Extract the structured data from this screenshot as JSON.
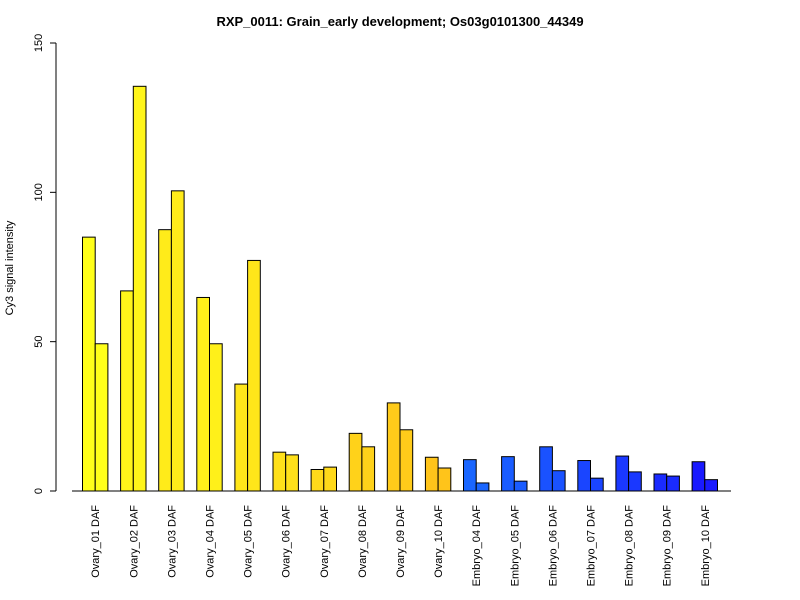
{
  "chart_data": {
    "type": "bar",
    "title": "RXP_0011: Grain_early development; Os03g0101300_44349",
    "xlabel": "",
    "ylabel": "Cy3 signal intensity",
    "ylim": [
      0,
      150
    ],
    "yticks": [
      0,
      50,
      100,
      150
    ],
    "grid": false,
    "categories": [
      "Ovary_01 DAF",
      "Ovary_02 DAF",
      "Ovary_03 DAF",
      "Ovary_04 DAF",
      "Ovary_05 DAF",
      "Ovary_06 DAF",
      "Ovary_07 DAF",
      "Ovary_08 DAF",
      "Ovary_09 DAF",
      "Ovary_10 DAF",
      "Embryo_04 DAF",
      "Embryo_05 DAF",
      "Embryo_06 DAF",
      "Embryo_07 DAF",
      "Embryo_08 DAF",
      "Embryo_09 DAF",
      "Embryo_10 DAF"
    ],
    "series": [
      {
        "values": [
          85,
          67,
          87.5,
          64.8,
          35.8,
          13,
          7.2,
          19.3,
          29.5,
          11.3,
          10.5,
          11.5,
          14.8,
          10.2,
          11.7,
          5.7,
          9.8
        ]
      },
      {
        "values": [
          49.3,
          135.5,
          100.5,
          49.3,
          77.2,
          12.1,
          8,
          14.8,
          20.5,
          7.7,
          2.7,
          3.3,
          6.8,
          4.3,
          6.4,
          5,
          3.8
        ]
      }
    ],
    "colors": [
      "#ffff1a",
      "#fff51a",
      "#ffeb1a",
      "#fff01a",
      "#ffe61a",
      "#ffe01a",
      "#ffd91a",
      "#ffd21a",
      "#ffcb1a",
      "#ffc41a",
      "#1a66ff",
      "#1a5cff",
      "#1a52ff",
      "#1a45ff",
      "#1a38ff",
      "#1a2bff",
      "#1a1aff"
    ]
  }
}
